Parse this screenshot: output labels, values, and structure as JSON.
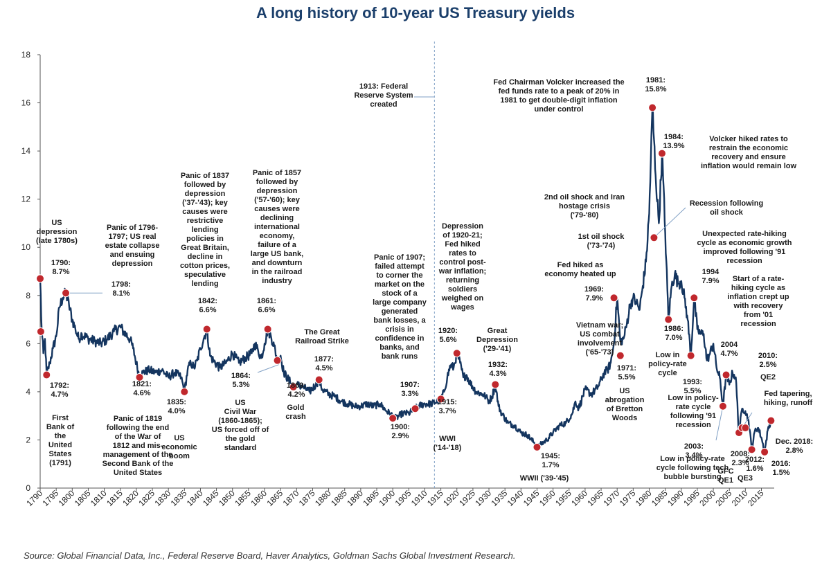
{
  "chart_data": {
    "type": "line",
    "title": "A long history of 10-year US Treasury yields",
    "xlabel": "",
    "ylabel": "",
    "xlim": [
      1790,
      2019
    ],
    "ylim": [
      0,
      18
    ],
    "yticks": [
      0,
      2,
      4,
      6,
      8,
      10,
      12,
      14,
      16,
      18
    ],
    "xticks": [
      1790,
      1795,
      1800,
      1805,
      1810,
      1815,
      1820,
      1825,
      1830,
      1835,
      1840,
      1845,
      1850,
      1855,
      1860,
      1865,
      1870,
      1875,
      1880,
      1885,
      1890,
      1895,
      1900,
      1905,
      1910,
      1915,
      1920,
      1925,
      1930,
      1935,
      1940,
      1945,
      1950,
      1955,
      1960,
      1965,
      1970,
      1975,
      1980,
      1985,
      1990,
      1995,
      2000,
      2005,
      2010,
      2015
    ],
    "grid": false,
    "legend": "none",
    "line_color": "#14355f",
    "marker_color": "#c0282d",
    "reference_line": {
      "x": 1913,
      "style": "dashed",
      "color": "#7f9fc4"
    },
    "series": [
      {
        "x": [
          1790,
          1790.5,
          1791,
          1791.5,
          1792,
          1793,
          1794,
          1795,
          1796,
          1797,
          1798,
          1799,
          1800,
          1801,
          1802,
          1803,
          1805,
          1807,
          1809,
          1811,
          1813,
          1815,
          1816,
          1818,
          1819,
          1820,
          1821,
          1822,
          1824,
          1826,
          1828,
          1830,
          1832,
          1834,
          1835,
          1836,
          1837,
          1838,
          1839,
          1840,
          1841,
          1842,
          1843,
          1844,
          1846,
          1848,
          1850,
          1852,
          1854,
          1856,
          1857,
          1858,
          1859,
          1860,
          1861,
          1862,
          1863,
          1864,
          1865,
          1866,
          1868,
          1869,
          1870,
          1872,
          1874,
          1876,
          1877,
          1878,
          1880,
          1882,
          1884,
          1886,
          1888,
          1890,
          1892,
          1894,
          1896,
          1898,
          1899,
          1900,
          1901,
          1903,
          1905,
          1907,
          1908,
          1910,
          1912,
          1914,
          1915,
          1916,
          1917,
          1918,
          1919,
          1920,
          1921,
          1922,
          1923,
          1924,
          1926,
          1928,
          1929,
          1930,
          1931,
          1932,
          1933,
          1934,
          1936,
          1938,
          1940,
          1942,
          1944,
          1945,
          1946,
          1948,
          1950,
          1952,
          1954,
          1956,
          1957,
          1958,
          1960,
          1962,
          1964,
          1966,
          1967,
          1968,
          1969,
          1970,
          1971,
          1972,
          1973,
          1974,
          1975,
          1976,
          1977,
          1978,
          1979,
          1980,
          1981,
          1982,
          1983,
          1984,
          1985,
          1986,
          1987,
          1988,
          1989,
          1990,
          1991,
          1992,
          1993,
          1994,
          1995,
          1996,
          1997,
          1998,
          1999,
          2000,
          2001,
          2002,
          2003,
          2004,
          2005,
          2006,
          2007,
          2008,
          2009,
          2010,
          2011,
          2012,
          2013,
          2014,
          2015,
          2016,
          2017,
          2018
        ],
        "values": [
          8.7,
          6.5,
          5.6,
          6.2,
          4.7,
          5.2,
          5.8,
          6.3,
          7.5,
          7.9,
          8.1,
          7.6,
          7.0,
          6.6,
          6.2,
          6.4,
          6.2,
          6.1,
          6.0,
          6.2,
          6.5,
          6.7,
          6.5,
          6.2,
          5.8,
          5.2,
          4.6,
          4.8,
          4.9,
          4.8,
          4.9,
          4.6,
          4.8,
          4.6,
          4.0,
          4.9,
          5.2,
          5.0,
          5.3,
          5.8,
          6.2,
          6.6,
          5.5,
          5.3,
          5.0,
          5.2,
          5.6,
          5.2,
          5.4,
          5.6,
          6.0,
          5.7,
          5.4,
          6.0,
          6.6,
          6.3,
          5.9,
          5.3,
          5.5,
          4.8,
          4.4,
          4.2,
          4.3,
          4.2,
          4.0,
          4.3,
          4.5,
          4.1,
          3.9,
          3.8,
          3.6,
          3.5,
          3.4,
          3.4,
          3.5,
          3.4,
          3.5,
          3.2,
          3.1,
          3.0,
          2.9,
          3.1,
          3.1,
          3.3,
          3.4,
          3.5,
          3.5,
          3.6,
          3.7,
          4.0,
          4.6,
          5.1,
          5.0,
          5.6,
          5.2,
          4.6,
          4.7,
          4.4,
          4.0,
          3.9,
          3.8,
          3.6,
          3.8,
          4.3,
          3.4,
          3.1,
          2.7,
          2.6,
          2.3,
          2.2,
          1.9,
          1.7,
          1.8,
          2.0,
          2.3,
          2.6,
          2.7,
          3.1,
          3.6,
          3.3,
          4.1,
          3.9,
          4.2,
          4.8,
          4.9,
          5.2,
          6.0,
          7.9,
          6.1,
          6.2,
          6.8,
          7.6,
          7.9,
          7.7,
          7.4,
          8.4,
          9.4,
          11.4,
          15.8,
          13.0,
          11.0,
          13.9,
          10.6,
          7.0,
          8.4,
          8.9,
          8.5,
          8.6,
          7.9,
          7.0,
          5.5,
          7.9,
          6.6,
          6.4,
          6.4,
          5.3,
          5.6,
          6.0,
          5.0,
          4.6,
          3.4,
          4.7,
          4.3,
          4.8,
          4.6,
          2.3,
          3.3,
          3.2,
          2.8,
          1.6,
          2.4,
          2.5,
          2.1,
          1.5,
          2.4,
          2.8
        ]
      }
    ],
    "highlights": [
      {
        "x": 1790,
        "y": 8.7,
        "label": "1790:\n8.7%"
      },
      {
        "x": 1790.2,
        "y": 6.5,
        "label": ""
      },
      {
        "x": 1792,
        "y": 4.7,
        "label": "1792:\n4.7%"
      },
      {
        "x": 1798,
        "y": 8.1,
        "label": "1798:\n8.1%"
      },
      {
        "x": 1821,
        "y": 4.6,
        "label": "1821:\n4.6%"
      },
      {
        "x": 1835,
        "y": 4.0,
        "label": "1835:\n4.0%"
      },
      {
        "x": 1842,
        "y": 6.6,
        "label": "1842:\n6.6%"
      },
      {
        "x": 1861,
        "y": 6.6,
        "label": "1861:\n6.6%"
      },
      {
        "x": 1864,
        "y": 5.3,
        "label": "1864:\n5.3%"
      },
      {
        "x": 1869,
        "y": 4.2,
        "label": "1869:\n4.2%"
      },
      {
        "x": 1877,
        "y": 4.5,
        "label": "1877:\n4.5%"
      },
      {
        "x": 1900,
        "y": 2.9,
        "label": "1900:\n2.9%"
      },
      {
        "x": 1907,
        "y": 3.3,
        "label": "1907:\n3.3%"
      },
      {
        "x": 1915,
        "y": 3.7,
        "label": "1915:\n3.7%"
      },
      {
        "x": 1920,
        "y": 5.6,
        "label": "1920:\n5.6%"
      },
      {
        "x": 1932,
        "y": 4.3,
        "label": "1932:\n4.3%"
      },
      {
        "x": 1945,
        "y": 1.7,
        "label": "1945:\n1.7%"
      },
      {
        "x": 1969,
        "y": 7.9,
        "label": "1969:\n7.9%"
      },
      {
        "x": 1971,
        "y": 5.5,
        "label": "1971:\n5.5%"
      },
      {
        "x": 1981,
        "y": 15.8,
        "label": "1981:\n15.8%"
      },
      {
        "x": 1984,
        "y": 13.9,
        "label": "1984:\n13.9%"
      },
      {
        "x": 1981.5,
        "y": 10.4,
        "label": ""
      },
      {
        "x": 1986,
        "y": 7.0,
        "label": "1986:\n7.0%"
      },
      {
        "x": 1993,
        "y": 5.5,
        "label": "1993:\n5.5%"
      },
      {
        "x": 1994,
        "y": 7.9,
        "label": "1994\n7.9%"
      },
      {
        "x": 2003,
        "y": 3.4,
        "label": "2003:\n3.4%"
      },
      {
        "x": 2004,
        "y": 4.7,
        "label": "2004\n4.7%"
      },
      {
        "x": 2008,
        "y": 2.3,
        "label": "2008:\n2.3%"
      },
      {
        "x": 2009,
        "y": 2.5,
        "label": ""
      },
      {
        "x": 2010,
        "y": 2.5,
        "label": "2010:\n2.5%"
      },
      {
        "x": 2012,
        "y": 1.6,
        "label": "2012:\n1.6%"
      },
      {
        "x": 2016,
        "y": 1.5,
        "label": "2016:\n1.5%"
      },
      {
        "x": 2018,
        "y": 2.8,
        "label": "Dec. 2018:\n2.8%"
      }
    ],
    "annotations": [
      {
        "text": "US\ndepression\n(late 1780s)"
      },
      {
        "text": "Panic of 1796-\n1797; US real\nestate collapse\nand ensuing\ndepression"
      },
      {
        "text": "First\nBank of\nthe\nUnited\nStates\n(1791)"
      },
      {
        "text": "Panic of 1819\nfollowing the end\nof the War of\n1812 and mis-\nmanagement of the\nSecond Bank of the\nUnited States"
      },
      {
        "text": "US\neconomic\nboom"
      },
      {
        "text": "Panic of 1837\nfollowed by\ndepression\n('37-'43); key\ncauses were\nrestrictive\nlending\npolicies in\nGreat Britain,\ndecline in\ncotton prices,\nspeculative\nlending"
      },
      {
        "text": "Panic of 1857\nfollowed by\ndepression\n('57-'60); key\ncauses were\ndeclining\ninternational\neconomy,\nfailure of a\nlarge US bank,\nand downturn\nin the railroad\nindustry"
      },
      {
        "text": "US\nCivil War\n(1860-1865);\nUS forced off of\nthe gold\nstandard"
      },
      {
        "text": "Gold\ncrash"
      },
      {
        "text": "The Great\nRailroad Strike"
      },
      {
        "text": "Panic of 1907;\nfailed attempt\nto corner the\nmarket on the\nstock of a\nlarge company\ngenerated\nbank losses, a\ncrisis in\nconfidence in\nbanks, and\nbank runs"
      },
      {
        "text": "1913: Federal\nReserve System\ncreated"
      },
      {
        "text": "Depression\nof 1920-21;\nFed hiked\nrates to\ncontrol post-\nwar inflation;\nreturning\nsoldiers\nweighed on\nwages"
      },
      {
        "text": "WWI\n('14-'18)"
      },
      {
        "text": "Great\nDepression\n('29-'41)"
      },
      {
        "text": "WWII ('39-'45)"
      },
      {
        "text": "Fed Chairman Volcker increased the\nfed funds rate to a peak of 20% in\n1981 to get double-digit inflation\nunder control"
      },
      {
        "text": "Volcker hiked rates to\nrestrain the economic\nrecovery and ensure\ninflation would remain low"
      },
      {
        "text": "2nd oil shock and Iran\nhostage crisis\n('79-'80)"
      },
      {
        "text": "Recession following\noil shock"
      },
      {
        "text": "1st oil shock\n('73-'74)"
      },
      {
        "text": "Fed hiked as\neconomy heated up"
      },
      {
        "text": "Unexpected rate-hiking\ncycle as economic growth\nimproved following '91\nrecession"
      },
      {
        "text": "Start of a rate-\nhiking cycle as\ninflation crept up\nwith recovery\nfrom '01\nrecession"
      },
      {
        "text": "Vietnam war;\nUS combat\ninvolvement\n('65-'73)"
      },
      {
        "text": "US\nabrogation\nof Bretton\nWoods"
      },
      {
        "text": "Low in\npolicy-rate\ncycle"
      },
      {
        "text": "Low in policy-\nrate cycle\nfollowing '91\nrecession"
      },
      {
        "text": "QE2"
      },
      {
        "text": "Fed tapering,\nhiking, runoff"
      },
      {
        "text": "Low in policy-rate\ncycle following tech\nbubble bursting"
      },
      {
        "text": "GFC\nQE1"
      },
      {
        "text": "QE3"
      }
    ],
    "source": "Source: Global Financial Data, Inc., Federal Reserve Board, Haver Analytics, Goldman Sachs Global Investment Research."
  }
}
